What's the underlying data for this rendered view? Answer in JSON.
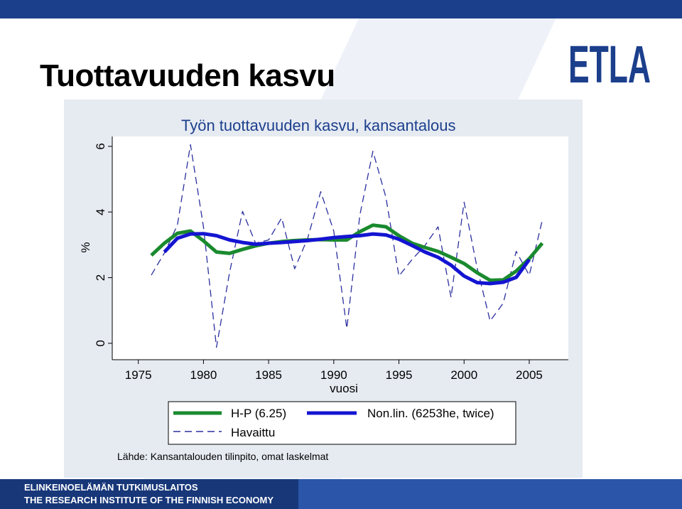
{
  "slide": {
    "title": "Tuottavuuden kasvu",
    "source": "Lähde: Kansantalouden tilinpito, omat laskelmat",
    "footer_line1": "ELINKEINOELÄMÄN TUTKIMUSLAITOS",
    "footer_line2": "THE RESEARCH INSTITUTE OF THE FINNISH ECONOMY",
    "logo_text": "ETLA",
    "brand_color": "#1c3f8c"
  },
  "chart_data": {
    "type": "line",
    "title": "Työn tuottavuuden kasvu, kansantalous",
    "xlabel": "vuosi",
    "ylabel": "%",
    "xlim": [
      1973,
      2008
    ],
    "ylim": [
      -0.5,
      6.3
    ],
    "xticks": [
      1975,
      1980,
      1985,
      1990,
      1995,
      2000,
      2005
    ],
    "yticks": [
      0,
      2,
      4,
      6
    ],
    "grid": false,
    "legend_position": "bottom",
    "series": [
      {
        "name": "H-P (6.25)",
        "color": "#1a8a2e",
        "style": "solid",
        "x": [
          1976,
          1977,
          1978,
          1979,
          1980,
          1981,
          1982,
          1983,
          1984,
          1985,
          1986,
          1987,
          1988,
          1989,
          1990,
          1991,
          1992,
          1993,
          1994,
          1995,
          1996,
          1997,
          1998,
          1999,
          2000,
          2001,
          2002,
          2003,
          2004,
          2005,
          2006
        ],
        "values": [
          2.68,
          3.05,
          3.35,
          3.42,
          3.12,
          2.78,
          2.74,
          2.86,
          2.97,
          3.05,
          3.1,
          3.13,
          3.15,
          3.16,
          3.15,
          3.15,
          3.4,
          3.6,
          3.55,
          3.28,
          3.05,
          2.92,
          2.8,
          2.62,
          2.43,
          2.15,
          1.92,
          1.93,
          2.2,
          2.58,
          3.05
        ]
      },
      {
        "name": "Havaittu",
        "color": "#2b2f9e",
        "style": "dashed",
        "x": [
          1976,
          1977,
          1978,
          1979,
          1980,
          1981,
          1982,
          1983,
          1984,
          1985,
          1986,
          1987,
          1988,
          1989,
          1990,
          1991,
          1992,
          1993,
          1994,
          1995,
          1996,
          1997,
          1998,
          1999,
          2000,
          2001,
          2002,
          2003,
          2004,
          2005,
          2006
        ],
        "values": [
          2.08,
          2.75,
          3.6,
          6.05,
          3.55,
          -0.12,
          2.15,
          4.02,
          3.05,
          3.15,
          3.82,
          2.27,
          3.2,
          4.62,
          3.42,
          0.45,
          3.9,
          5.85,
          4.45,
          2.05,
          2.55,
          2.98,
          3.55,
          1.4,
          4.3,
          2.3,
          0.68,
          1.22,
          2.8,
          2.07,
          3.75
        ]
      },
      {
        "name": "Non.lin. (6253he, twice)",
        "color": "#1414d2",
        "style": "solid",
        "x": [
          1977,
          1978,
          1979,
          1980,
          1981,
          1982,
          1983,
          1984,
          1985,
          1986,
          1987,
          1988,
          1989,
          1990,
          1991,
          1992,
          1993,
          1994,
          1995,
          1996,
          1997,
          1998,
          1999,
          2000,
          2001,
          2002,
          2003,
          2004,
          2005
        ],
        "values": [
          2.78,
          3.2,
          3.33,
          3.34,
          3.28,
          3.15,
          3.07,
          3.02,
          3.05,
          3.07,
          3.1,
          3.13,
          3.17,
          3.22,
          3.25,
          3.28,
          3.33,
          3.3,
          3.17,
          2.98,
          2.78,
          2.62,
          2.38,
          2.05,
          1.85,
          1.82,
          1.86,
          2.01,
          2.55
        ]
      }
    ]
  }
}
